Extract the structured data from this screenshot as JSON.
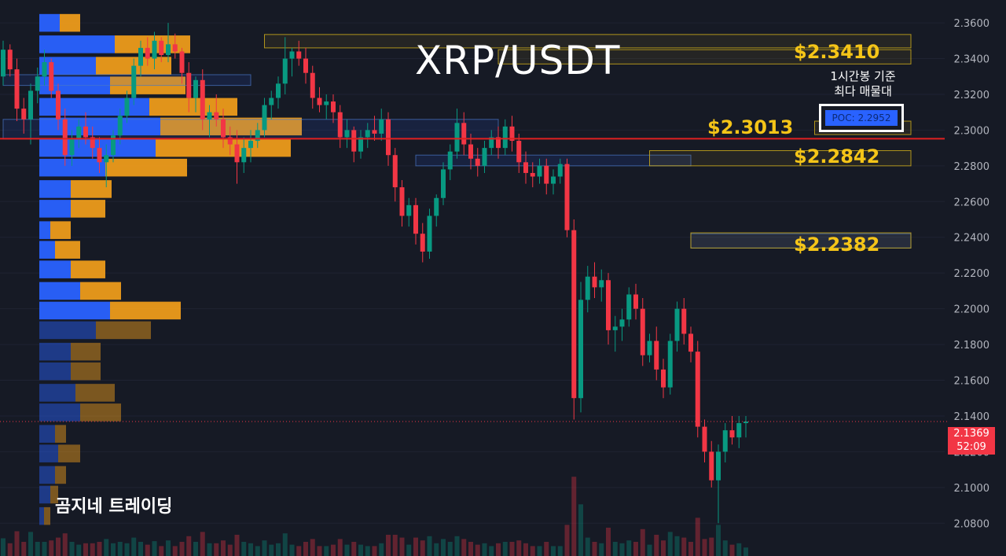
{
  "title": "XRP/USDT",
  "watermark": "곰지네 트레이딩",
  "poc_note_line1": "1시간봉 기준",
  "poc_note_line2": "최다 매물대",
  "poc_label": "POC: 2.2952",
  "current_price": "2.1369",
  "countdown": "52:09",
  "levels": [
    {
      "label": "$2.3410",
      "value": 2.341
    },
    {
      "label": "$2.3013",
      "value": 2.3013
    },
    {
      "label": "$2.2842",
      "value": 2.2842
    },
    {
      "label": "$2.2382",
      "value": 2.2382
    }
  ],
  "colors": {
    "background": "#161a25",
    "up": "#089981",
    "down": "#f23645",
    "buy_volume": "#2962ff",
    "sell_volume": "#f7a21b",
    "zone": "#d4b21a",
    "poc_line": "#e02020",
    "axis_text": "#b2b5be"
  },
  "chart_data": {
    "type": "candlestick",
    "symbol": "XRP/USDT",
    "timeframe": "1h",
    "ylim": [
      2.07,
      2.364
    ],
    "y_ticks": [
      "2.3600",
      "2.3400",
      "2.3200",
      "2.3000",
      "2.2800",
      "2.2600",
      "2.2400",
      "2.2200",
      "2.2000",
      "2.1800",
      "2.1600",
      "2.1400",
      "2.1200",
      "2.1000",
      "2.0800"
    ],
    "poc": 2.2952,
    "last_close": 2.1369,
    "candles": [
      [
        2.33,
        2.35,
        2.325,
        2.345
      ],
      [
        2.345,
        2.348,
        2.33,
        2.334
      ],
      [
        2.334,
        2.34,
        2.305,
        2.312
      ],
      [
        2.312,
        2.318,
        2.298,
        2.306
      ],
      [
        2.306,
        2.326,
        2.292,
        2.322
      ],
      [
        2.322,
        2.335,
        2.315,
        2.33
      ],
      [
        2.33,
        2.345,
        2.325,
        2.338
      ],
      [
        2.338,
        2.34,
        2.318,
        2.322
      ],
      [
        2.322,
        2.326,
        2.3,
        2.306
      ],
      [
        2.306,
        2.312,
        2.28,
        2.286
      ],
      [
        2.286,
        2.3,
        2.28,
        2.295
      ],
      [
        2.295,
        2.306,
        2.29,
        2.302
      ],
      [
        2.302,
        2.31,
        2.292,
        2.296
      ],
      [
        2.296,
        2.302,
        2.284,
        2.29
      ],
      [
        2.29,
        2.296,
        2.276,
        2.282
      ],
      [
        2.282,
        2.292,
        2.268,
        2.286
      ],
      [
        2.286,
        2.3,
        2.282,
        2.297
      ],
      [
        2.297,
        2.312,
        2.292,
        2.308
      ],
      [
        2.308,
        2.322,
        2.304,
        2.318
      ],
      [
        2.318,
        2.34,
        2.314,
        2.336
      ],
      [
        2.336,
        2.35,
        2.33,
        2.346
      ],
      [
        2.346,
        2.352,
        2.336,
        2.34
      ],
      [
        2.34,
        2.355,
        2.334,
        2.35
      ],
      [
        2.35,
        2.352,
        2.338,
        2.342
      ],
      [
        2.342,
        2.36,
        2.338,
        2.348
      ],
      [
        2.348,
        2.354,
        2.34,
        2.344
      ],
      [
        2.344,
        2.346,
        2.326,
        2.332
      ],
      [
        2.332,
        2.338,
        2.31,
        2.318
      ],
      [
        2.318,
        2.33,
        2.31,
        2.328
      ],
      [
        2.328,
        2.334,
        2.3,
        2.306
      ],
      [
        2.306,
        2.314,
        2.296,
        2.31
      ],
      [
        2.31,
        2.32,
        2.302,
        2.306
      ],
      [
        2.306,
        2.312,
        2.29,
        2.296
      ],
      [
        2.296,
        2.302,
        2.286,
        2.292
      ],
      [
        2.292,
        2.3,
        2.27,
        2.282
      ],
      [
        2.282,
        2.296,
        2.276,
        2.29
      ],
      [
        2.29,
        2.3,
        2.282,
        2.294
      ],
      [
        2.294,
        2.304,
        2.29,
        2.3
      ],
      [
        2.3,
        2.318,
        2.296,
        2.314
      ],
      [
        2.314,
        2.322,
        2.306,
        2.318
      ],
      [
        2.318,
        2.33,
        2.312,
        2.326
      ],
      [
        2.326,
        2.352,
        2.32,
        2.34
      ],
      [
        2.34,
        2.346,
        2.33,
        2.344
      ],
      [
        2.344,
        2.35,
        2.336,
        2.34
      ],
      [
        2.34,
        2.346,
        2.326,
        2.332
      ],
      [
        2.332,
        2.336,
        2.312,
        2.318
      ],
      [
        2.318,
        2.324,
        2.31,
        2.314
      ],
      [
        2.314,
        2.32,
        2.306,
        2.316
      ],
      [
        2.316,
        2.32,
        2.304,
        2.31
      ],
      [
        2.31,
        2.314,
        2.29,
        2.296
      ],
      [
        2.296,
        2.306,
        2.29,
        2.3
      ],
      [
        2.3,
        2.302,
        2.282,
        2.288
      ],
      [
        2.288,
        2.3,
        2.284,
        2.296
      ],
      [
        2.296,
        2.304,
        2.29,
        2.3
      ],
      [
        2.3,
        2.308,
        2.294,
        2.298
      ],
      [
        2.298,
        2.312,
        2.294,
        2.306
      ],
      [
        2.306,
        2.31,
        2.28,
        2.286
      ],
      [
        2.286,
        2.29,
        2.26,
        2.268
      ],
      [
        2.268,
        2.272,
        2.246,
        2.252
      ],
      [
        2.252,
        2.262,
        2.246,
        2.258
      ],
      [
        2.258,
        2.262,
        2.236,
        2.242
      ],
      [
        2.242,
        2.248,
        2.226,
        2.232
      ],
      [
        2.232,
        2.256,
        2.228,
        2.252
      ],
      [
        2.252,
        2.264,
        2.246,
        2.262
      ],
      [
        2.262,
        2.282,
        2.258,
        2.278
      ],
      [
        2.278,
        2.292,
        2.272,
        2.288
      ],
      [
        2.288,
        2.312,
        2.284,
        2.304
      ],
      [
        2.304,
        2.31,
        2.286,
        2.292
      ],
      [
        2.292,
        2.298,
        2.278,
        2.284
      ],
      [
        2.284,
        2.29,
        2.274,
        2.28
      ],
      [
        2.28,
        2.294,
        2.276,
        2.29
      ],
      [
        2.29,
        2.3,
        2.286,
        2.296
      ],
      [
        2.296,
        2.302,
        2.284,
        2.29
      ],
      [
        2.29,
        2.306,
        2.286,
        2.302
      ],
      [
        2.302,
        2.308,
        2.288,
        2.294
      ],
      [
        2.294,
        2.298,
        2.276,
        2.282
      ],
      [
        2.282,
        2.288,
        2.27,
        2.276
      ],
      [
        2.276,
        2.282,
        2.268,
        2.274
      ],
      [
        2.274,
        2.284,
        2.27,
        2.28
      ],
      [
        2.28,
        2.284,
        2.264,
        2.27
      ],
      [
        2.27,
        2.278,
        2.264,
        2.274
      ],
      [
        2.274,
        2.284,
        2.27,
        2.281
      ],
      [
        2.281,
        2.284,
        2.24,
        2.244
      ],
      [
        2.244,
        2.25,
        2.138,
        2.15
      ],
      [
        2.15,
        2.215,
        2.142,
        2.205
      ],
      [
        2.205,
        2.224,
        2.198,
        2.218
      ],
      [
        2.218,
        2.226,
        2.206,
        2.212
      ],
      [
        2.212,
        2.222,
        2.204,
        2.216
      ],
      [
        2.216,
        2.22,
        2.18,
        2.188
      ],
      [
        2.188,
        2.196,
        2.176,
        2.19
      ],
      [
        2.19,
        2.2,
        2.182,
        2.194
      ],
      [
        2.194,
        2.212,
        2.19,
        2.208
      ],
      [
        2.208,
        2.214,
        2.194,
        2.2
      ],
      [
        2.2,
        2.206,
        2.168,
        2.174
      ],
      [
        2.174,
        2.186,
        2.17,
        2.182
      ],
      [
        2.182,
        2.19,
        2.16,
        2.166
      ],
      [
        2.166,
        2.172,
        2.15,
        2.156
      ],
      [
        2.156,
        2.186,
        2.152,
        2.182
      ],
      [
        2.182,
        2.204,
        2.176,
        2.2
      ],
      [
        2.2,
        2.206,
        2.18,
        2.186
      ],
      [
        2.186,
        2.19,
        2.17,
        2.176
      ],
      [
        2.176,
        2.182,
        2.128,
        2.134
      ],
      [
        2.134,
        2.138,
        2.114,
        2.12
      ],
      [
        2.12,
        2.126,
        2.1,
        2.104
      ],
      [
        2.104,
        2.124,
        2.08,
        2.12
      ],
      [
        2.12,
        2.136,
        2.114,
        2.132
      ],
      [
        2.132,
        2.14,
        2.124,
        2.128
      ],
      [
        2.128,
        2.14,
        2.122,
        2.136
      ],
      [
        2.136,
        2.14,
        2.128,
        2.1369
      ]
    ],
    "volume_profile": [
      {
        "price": 2.36,
        "buy": 26,
        "sell": 26
      },
      {
        "price": 2.348,
        "buy": 96,
        "sell": 96
      },
      {
        "price": 2.336,
        "buy": 72,
        "sell": 96
      },
      {
        "price": 2.325,
        "buy": 90,
        "sell": 96
      },
      {
        "price": 2.313,
        "buy": 140,
        "sell": 112
      },
      {
        "price": 2.302,
        "buy": 154,
        "sell": 180
      },
      {
        "price": 2.29,
        "buy": 148,
        "sell": 172
      },
      {
        "price": 2.279,
        "buy": 84,
        "sell": 104
      },
      {
        "price": 2.267,
        "buy": 40,
        "sell": 52
      },
      {
        "price": 2.256,
        "buy": 40,
        "sell": 44
      },
      {
        "price": 2.244,
        "buy": 14,
        "sell": 26
      },
      {
        "price": 2.233,
        "buy": 20,
        "sell": 32
      },
      {
        "price": 2.222,
        "buy": 40,
        "sell": 44
      },
      {
        "price": 2.21,
        "buy": 52,
        "sell": 52
      },
      {
        "price": 2.199,
        "buy": 90,
        "sell": 90
      },
      {
        "price": 2.188,
        "buy": 72,
        "sell": 70
      },
      {
        "price": 2.176,
        "buy": 40,
        "sell": 38
      },
      {
        "price": 2.165,
        "buy": 40,
        "sell": 38
      },
      {
        "price": 2.153,
        "buy": 46,
        "sell": 50
      },
      {
        "price": 2.142,
        "buy": 52,
        "sell": 52
      },
      {
        "price": 2.13,
        "buy": 20,
        "sell": 14
      },
      {
        "price": 2.119,
        "buy": 24,
        "sell": 28
      },
      {
        "price": 2.107,
        "buy": 20,
        "sell": 14
      },
      {
        "price": 2.096,
        "buy": 14,
        "sell": 10
      },
      {
        "price": 2.084,
        "buy": 6,
        "sell": 8
      }
    ],
    "zones": [
      {
        "top": 2.3535,
        "bottom": 2.346,
        "start": 38,
        "end": 132
      },
      {
        "top": 2.345,
        "bottom": 2.337,
        "start": 72,
        "end": 132
      },
      {
        "top": 2.305,
        "bottom": 2.2975,
        "start": 118,
        "end": 132
      },
      {
        "top": 2.2885,
        "bottom": 2.28,
        "start": 94,
        "end": 132
      },
      {
        "top": 2.2425,
        "bottom": 2.234,
        "start": 100,
        "end": 132
      }
    ],
    "blue_zones": [
      {
        "top": 2.306,
        "bottom": 2.295,
        "start": 0,
        "end": 72
      },
      {
        "top": 2.286,
        "bottom": 2.28,
        "start": 60,
        "end": 100
      },
      {
        "top": 2.242,
        "bottom": 2.234,
        "start": 100,
        "end": 132
      },
      {
        "top": 2.331,
        "bottom": 2.325,
        "start": 0,
        "end": 36
      }
    ]
  }
}
